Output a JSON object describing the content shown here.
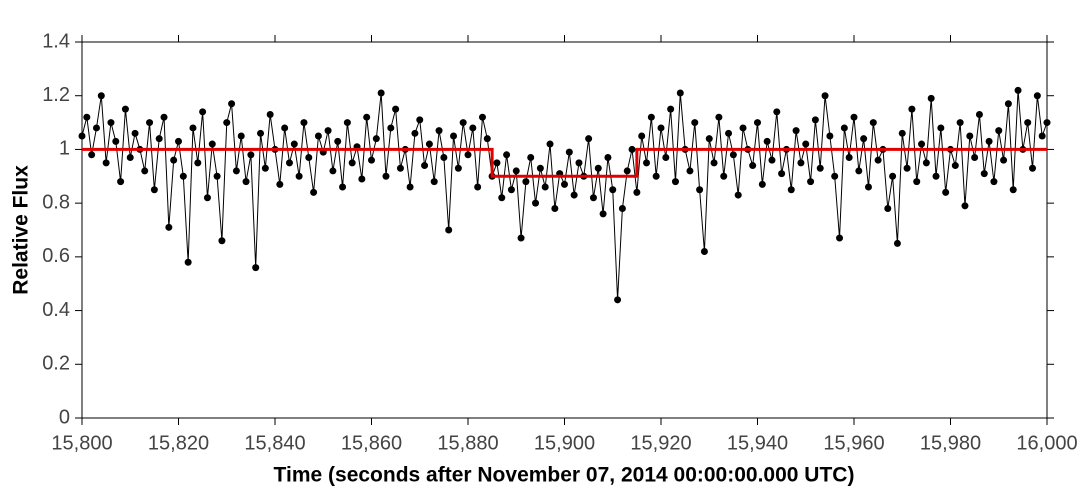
{
  "chart_data": {
    "type": "line",
    "x_label": "Time (seconds after November 07, 2014 00:00:00.000 UTC)",
    "y_label": "Relative Flux",
    "xlim": [
      15800,
      16000
    ],
    "xticks": [
      {
        "value": 15800,
        "label": "15,800"
      },
      {
        "value": 15820,
        "label": "15,820"
      },
      {
        "value": 15840,
        "label": "15,840"
      },
      {
        "value": 15860,
        "label": "15,860"
      },
      {
        "value": 15880,
        "label": "15,880"
      },
      {
        "value": 15900,
        "label": "15,900"
      },
      {
        "value": 15920,
        "label": "15,920"
      },
      {
        "value": 15940,
        "label": "15,940"
      },
      {
        "value": 15960,
        "label": "15,960"
      },
      {
        "value": 15980,
        "label": "15,980"
      },
      {
        "value": 16000,
        "label": "16,000"
      }
    ],
    "ylim": [
      0,
      1.4
    ],
    "yticks": [
      0,
      0.2,
      0.4,
      0.6,
      0.8,
      1,
      1.2,
      1.4
    ],
    "series": [
      {
        "color": "#000000",
        "markers": true,
        "x": [
          15800,
          15801,
          15802,
          15803,
          15804,
          15805,
          15806,
          15807,
          15808,
          15809,
          15810,
          15811,
          15812,
          15813,
          15814,
          15815,
          15816,
          15817,
          15818,
          15819,
          15820,
          15821,
          15822,
          15823,
          15824,
          15825,
          15826,
          15827,
          15828,
          15829,
          15830,
          15831,
          15832,
          15833,
          15834,
          15835,
          15836,
          15837,
          15838,
          15839,
          15840,
          15841,
          15842,
          15843,
          15844,
          15845,
          15846,
          15847,
          15848,
          15849,
          15850,
          15851,
          15852,
          15853,
          15854,
          15855,
          15856,
          15857,
          15858,
          15859,
          15860,
          15861,
          15862,
          15863,
          15864,
          15865,
          15866,
          15867,
          15868,
          15869,
          15870,
          15871,
          15872,
          15873,
          15874,
          15875,
          15876,
          15877,
          15878,
          15879,
          15880,
          15881,
          15882,
          15883,
          15884,
          15885,
          15886,
          15887,
          15888,
          15889,
          15890,
          15891,
          15892,
          15893,
          15894,
          15895,
          15896,
          15897,
          15898,
          15899,
          15900,
          15901,
          15902,
          15903,
          15904,
          15905,
          15906,
          15907,
          15908,
          15909,
          15910,
          15911,
          15912,
          15913,
          15914,
          15915,
          15916,
          15917,
          15918,
          15919,
          15920,
          15921,
          15922,
          15923,
          15924,
          15925,
          15926,
          15927,
          15928,
          15929,
          15930,
          15931,
          15932,
          15933,
          15934,
          15935,
          15936,
          15937,
          15938,
          15939,
          15940,
          15941,
          15942,
          15943,
          15944,
          15945,
          15946,
          15947,
          15948,
          15949,
          15950,
          15951,
          15952,
          15953,
          15954,
          15955,
          15956,
          15957,
          15958,
          15959,
          15960,
          15961,
          15962,
          15963,
          15964,
          15965,
          15966,
          15967,
          15968,
          15969,
          15970,
          15971,
          15972,
          15973,
          15974,
          15975,
          15976,
          15977,
          15978,
          15979,
          15980,
          15981,
          15982,
          15983,
          15984,
          15985,
          15986,
          15987,
          15988,
          15989,
          15990,
          15991,
          15992,
          15993,
          15994,
          15995,
          15996,
          15997,
          15998,
          15999,
          16000
        ],
        "values": [
          1.05,
          1.12,
          0.98,
          1.08,
          1.2,
          0.95,
          1.1,
          1.03,
          0.88,
          1.15,
          0.97,
          1.06,
          1.0,
          0.92,
          1.1,
          0.85,
          1.04,
          1.12,
          0.71,
          0.96,
          1.03,
          0.9,
          0.58,
          1.08,
          0.95,
          1.14,
          0.82,
          1.02,
          0.9,
          0.66,
          1.1,
          1.17,
          0.92,
          1.05,
          0.88,
          0.98,
          0.56,
          1.06,
          0.93,
          1.13,
          1.0,
          0.87,
          1.08,
          0.95,
          1.02,
          0.9,
          1.1,
          0.97,
          0.84,
          1.05,
          0.99,
          1.07,
          0.92,
          1.03,
          0.86,
          1.1,
          0.95,
          1.01,
          0.89,
          1.12,
          0.96,
          1.04,
          1.21,
          0.9,
          1.08,
          1.15,
          0.93,
          1.0,
          0.86,
          1.06,
          1.11,
          0.94,
          1.02,
          0.88,
          1.07,
          0.97,
          0.7,
          1.05,
          0.93,
          1.1,
          0.98,
          1.08,
          0.86,
          1.12,
          1.04,
          0.9,
          0.95,
          0.82,
          0.98,
          0.85,
          0.92,
          0.67,
          0.88,
          0.97,
          0.8,
          0.93,
          0.86,
          1.02,
          0.78,
          0.91,
          0.87,
          0.99,
          0.83,
          0.95,
          0.9,
          1.04,
          0.82,
          0.93,
          0.76,
          0.97,
          0.85,
          0.44,
          0.78,
          0.92,
          1.0,
          0.84,
          1.05,
          0.95,
          1.12,
          0.9,
          1.08,
          0.97,
          1.15,
          0.88,
          1.21,
          1.0,
          0.92,
          1.1,
          0.85,
          0.62,
          1.04,
          0.95,
          1.12,
          0.9,
          1.06,
          0.98,
          0.83,
          1.08,
          1.0,
          0.94,
          1.1,
          0.87,
          1.03,
          0.96,
          1.14,
          0.91,
          1.0,
          0.85,
          1.07,
          0.95,
          1.02,
          0.88,
          1.11,
          0.93,
          1.2,
          1.05,
          0.9,
          0.67,
          1.08,
          0.97,
          1.12,
          0.92,
          1.04,
          0.86,
          1.1,
          0.96,
          1.0,
          0.78,
          0.9,
          0.65,
          1.06,
          0.93,
          1.15,
          0.88,
          1.02,
          0.95,
          1.19,
          0.9,
          1.08,
          0.84,
          1.0,
          0.94,
          1.1,
          0.79,
          1.05,
          0.97,
          1.13,
          0.91,
          1.03,
          0.88,
          1.07,
          0.96,
          1.17,
          0.85,
          1.22,
          1.0,
          1.1,
          0.93,
          1.2,
          1.05,
          1.1
        ]
      },
      {
        "color": "#e00000",
        "markers": false,
        "x": [
          15800,
          15885,
          15885,
          15915,
          15915,
          16000
        ],
        "values": [
          1,
          1,
          0.9,
          0.9,
          1,
          1
        ]
      }
    ]
  }
}
